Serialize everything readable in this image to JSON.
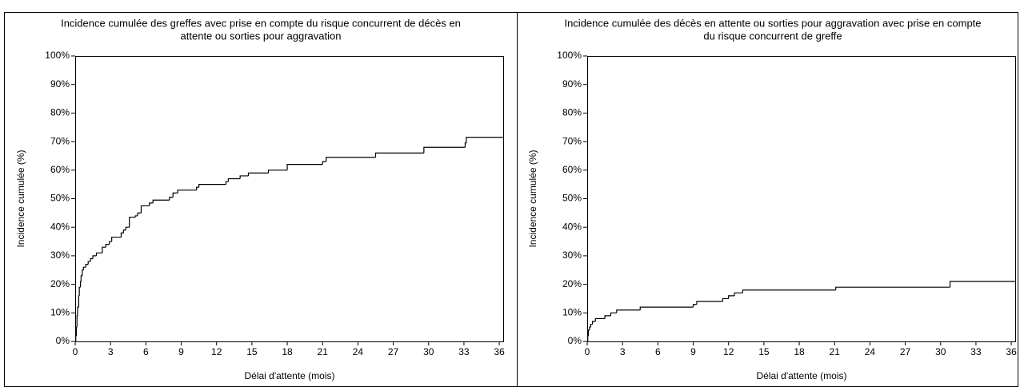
{
  "chart_data": [
    {
      "type": "step",
      "title": [
        "Incidence cumulée des greffes avec prise en compte du risque concurrent de décès en",
        "attente ou sorties pour aggravation"
      ],
      "xlabel": "Délai d'attente (mois)",
      "ylabel": "Incidence cumulée (%)",
      "color": "#000000",
      "x": [
        0,
        0.05,
        0.1,
        0.15,
        0.2,
        0.3,
        0.35,
        0.45,
        0.5,
        0.6,
        0.7,
        0.9,
        1.1,
        1.3,
        1.5,
        1.8,
        2.3,
        2.6,
        2.9,
        3.1,
        3.9,
        4.1,
        4.3,
        4.6,
        5.1,
        5.3,
        5.6,
        6.3,
        6.6,
        8.0,
        8.3,
        8.7,
        10.3,
        10.5,
        12.8,
        13.0,
        14.0,
        14.7,
        16.4,
        18.0,
        21.0,
        21.3,
        25.5,
        29.6,
        33.1,
        33.2
      ],
      "values": [
        0,
        2,
        5,
        9,
        12,
        16,
        19,
        21,
        23,
        25,
        26,
        27,
        28,
        29,
        30,
        31,
        33,
        34,
        35,
        36.5,
        38,
        39,
        40,
        43.5,
        44,
        45,
        47.5,
        48.5,
        49.5,
        50.5,
        52,
        53,
        54,
        55,
        56,
        57,
        58,
        59,
        60,
        62,
        63,
        64.5,
        66,
        68,
        69.5,
        71.5
      ],
      "xlim": [
        0,
        36.4
      ],
      "ylim": [
        0,
        100
      ],
      "xticks": [
        0,
        3,
        6,
        9,
        12,
        15,
        18,
        21,
        24,
        27,
        30,
        33,
        36
      ],
      "yticks": [
        {
          "value": 0,
          "label": "0%"
        },
        {
          "value": 10,
          "label": "10%"
        },
        {
          "value": 20,
          "label": "20%"
        },
        {
          "value": 30,
          "label": "30%"
        },
        {
          "value": 40,
          "label": "40%"
        },
        {
          "value": 50,
          "label": "50%"
        },
        {
          "value": 60,
          "label": "60%"
        },
        {
          "value": 70,
          "label": "70%"
        },
        {
          "value": 80,
          "label": "80%"
        },
        {
          "value": 90,
          "label": "90%"
        },
        {
          "value": 100,
          "label": "100%"
        }
      ]
    },
    {
      "type": "step",
      "title": [
        "Incidence cumulée des décès en attente ou sorties pour aggravation avec prise en compte",
        "du risque concurrent de greffe"
      ],
      "xlabel": "Délai d'attente (mois)",
      "ylabel": "Incidence cumulée (%)",
      "color": "#000000",
      "x": [
        0,
        0.05,
        0.1,
        0.2,
        0.3,
        0.45,
        0.7,
        1.5,
        2.0,
        2.5,
        4.5,
        9.0,
        9.3,
        11.5,
        12.0,
        12.5,
        13.2,
        21.1,
        30.8
      ],
      "values": [
        0,
        2,
        4,
        5,
        6,
        7,
        8,
        9,
        10,
        11,
        12,
        13,
        14,
        15,
        16,
        17,
        18,
        19,
        21
      ],
      "xlim": [
        0,
        36.4
      ],
      "ylim": [
        0,
        100
      ],
      "xticks": [
        0,
        3,
        6,
        9,
        12,
        15,
        18,
        21,
        24,
        27,
        30,
        33,
        36
      ],
      "yticks": [
        {
          "value": 0,
          "label": "0%"
        },
        {
          "value": 10,
          "label": "10%"
        },
        {
          "value": 20,
          "label": "20%"
        },
        {
          "value": 30,
          "label": "30%"
        },
        {
          "value": 40,
          "label": "40%"
        },
        {
          "value": 50,
          "label": "50%"
        },
        {
          "value": 60,
          "label": "60%"
        },
        {
          "value": 70,
          "label": "70%"
        },
        {
          "value": 80,
          "label": "80%"
        },
        {
          "value": 90,
          "label": "90%"
        },
        {
          "value": 100,
          "label": "100%"
        }
      ]
    }
  ]
}
